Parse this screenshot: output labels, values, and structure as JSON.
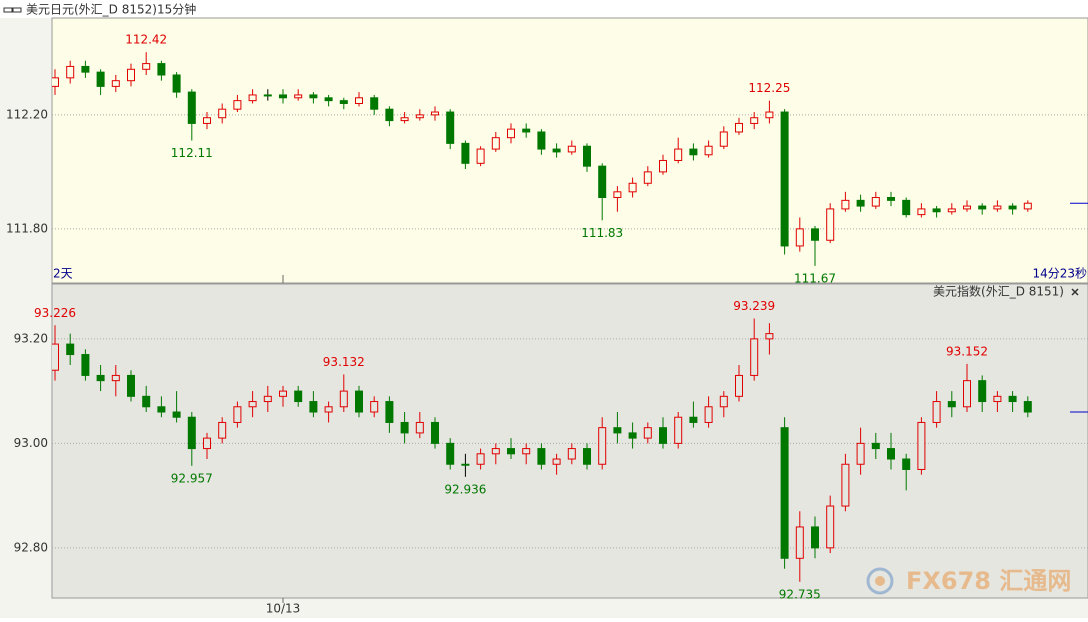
{
  "chart_data": [
    {
      "type": "candlestick",
      "title": "美元日元(外汇_D 8152)15分钟",
      "period_label": "2天",
      "countdown": "14分23秒",
      "up_color": "#e00000",
      "down_color": "#007800",
      "background": "#fdfde8",
      "grid": true,
      "ylim": [
        111.61,
        112.54
      ],
      "yticks": [
        {
          "value": 111.8,
          "label": "111.80"
        },
        {
          "value": 112.2,
          "label": "112.20"
        }
      ],
      "open": [
        112.3,
        112.33,
        112.37,
        112.35,
        112.3,
        112.32,
        112.36,
        112.38,
        112.34,
        112.28,
        112.17,
        112.19,
        112.22,
        112.25,
        112.27,
        112.27,
        112.26,
        112.27,
        112.26,
        112.25,
        112.24,
        112.26,
        112.22,
        112.18,
        112.19,
        112.2,
        112.21,
        112.1,
        112.03,
        112.08,
        112.12,
        112.15,
        112.14,
        112.08,
        112.07,
        112.09,
        112.02,
        111.91,
        111.93,
        111.96,
        112.0,
        112.04,
        112.08,
        112.06,
        112.09,
        112.14,
        112.17,
        112.19,
        112.21,
        111.74,
        111.8,
        111.76,
        111.87,
        111.9,
        111.88,
        111.91,
        111.9,
        111.85,
        111.87,
        111.86,
        111.87,
        111.88,
        111.87,
        111.88,
        111.87
      ],
      "high": [
        112.36,
        112.39,
        112.39,
        112.36,
        112.34,
        112.38,
        112.42,
        112.39,
        112.35,
        112.29,
        112.21,
        112.24,
        112.27,
        112.29,
        112.29,
        112.29,
        112.29,
        112.28,
        112.27,
        112.26,
        112.28,
        112.27,
        112.23,
        112.21,
        112.22,
        112.23,
        112.22,
        112.11,
        112.09,
        112.14,
        112.17,
        112.17,
        112.15,
        112.1,
        112.11,
        112.1,
        112.03,
        111.95,
        111.98,
        112.02,
        112.06,
        112.12,
        112.1,
        112.11,
        112.16,
        112.19,
        112.21,
        112.25,
        112.22,
        111.84,
        111.81,
        111.89,
        111.93,
        111.92,
        111.93,
        111.93,
        111.91,
        111.89,
        111.88,
        111.89,
        111.9,
        111.89,
        111.9,
        111.89,
        111.9
      ],
      "low": [
        112.27,
        112.31,
        112.33,
        112.27,
        112.28,
        112.3,
        112.34,
        112.32,
        112.26,
        112.11,
        112.15,
        112.17,
        112.21,
        112.24,
        112.25,
        112.24,
        112.25,
        112.24,
        112.23,
        112.22,
        112.23,
        112.2,
        112.16,
        112.17,
        112.18,
        112.18,
        112.08,
        112.01,
        112.02,
        112.07,
        112.1,
        112.12,
        112.06,
        112.05,
        112.06,
        112.0,
        111.83,
        111.86,
        111.91,
        111.95,
        111.99,
        112.03,
        112.04,
        112.05,
        112.08,
        112.13,
        112.15,
        112.17,
        111.71,
        111.72,
        111.67,
        111.75,
        111.86,
        111.86,
        111.87,
        111.88,
        111.84,
        111.84,
        111.84,
        111.85,
        111.86,
        111.85,
        111.86,
        111.85,
        111.86
      ],
      "close": [
        112.33,
        112.37,
        112.35,
        112.3,
        112.32,
        112.36,
        112.38,
        112.34,
        112.28,
        112.17,
        112.19,
        112.22,
        112.25,
        112.27,
        112.27,
        112.26,
        112.27,
        112.26,
        112.25,
        112.24,
        112.26,
        112.22,
        112.18,
        112.19,
        112.2,
        112.21,
        112.1,
        112.03,
        112.08,
        112.12,
        112.15,
        112.14,
        112.08,
        112.07,
        112.09,
        112.02,
        111.91,
        111.93,
        111.96,
        112.0,
        112.04,
        112.08,
        112.06,
        112.09,
        112.14,
        112.17,
        112.19,
        112.21,
        111.74,
        111.8,
        111.76,
        111.87,
        111.9,
        111.88,
        111.91,
        111.9,
        111.85,
        111.87,
        111.86,
        111.87,
        111.88,
        111.87,
        111.88,
        111.87,
        111.89
      ],
      "annotations": {
        "highs": [
          112.42,
          112.25
        ],
        "lows": [
          112.11,
          111.83,
          111.67
        ]
      }
    },
    {
      "type": "candlestick",
      "title": "美元指数(外汇_D 8151)",
      "up_color": "#e00000",
      "down_color": "#007800",
      "background": "#e6e6e0",
      "grid": true,
      "ylim": [
        92.704,
        93.305
      ],
      "yticks": [
        {
          "value": 92.8,
          "label": "92.80"
        },
        {
          "value": 93,
          "label": "93.00"
        },
        {
          "value": 93.2,
          "label": "93.20"
        }
      ],
      "categories": [
        null,
        null,
        null,
        null,
        null,
        null,
        null,
        null,
        null,
        null,
        null,
        null,
        null,
        null,
        null,
        "10/13",
        null,
        null,
        null,
        null,
        null,
        null,
        null,
        null,
        null,
        null,
        null,
        null,
        null,
        null,
        null,
        null,
        null,
        null,
        null,
        null,
        null,
        null,
        null,
        null,
        null,
        null,
        null,
        null,
        null,
        null,
        null,
        null,
        null,
        null,
        null,
        null,
        null,
        null,
        null,
        null,
        null,
        null,
        null,
        null,
        null,
        null,
        null,
        null,
        null
      ],
      "open": [
        93.14,
        93.19,
        93.17,
        93.13,
        93.12,
        93.13,
        93.09,
        93.07,
        93.06,
        93.05,
        92.99,
        93.01,
        93.04,
        93.07,
        93.08,
        93.09,
        93.1,
        93.08,
        93.06,
        93.07,
        93.1,
        93.06,
        93.08,
        93.04,
        93.02,
        93.04,
        93.0,
        92.96,
        92.96,
        92.98,
        92.99,
        92.98,
        92.99,
        92.96,
        92.97,
        92.99,
        92.96,
        93.03,
        93.02,
        93.01,
        93.03,
        93.0,
        93.05,
        93.04,
        93.07,
        93.09,
        93.13,
        93.2,
        93.03,
        92.78,
        92.84,
        92.8,
        92.88,
        92.96,
        93.0,
        92.99,
        92.97,
        92.95,
        93.04,
        93.08,
        93.07,
        93.12,
        93.08,
        93.09,
        93.08
      ],
      "high": [
        93.226,
        93.21,
        93.18,
        93.15,
        93.15,
        93.14,
        93.11,
        93.09,
        93.1,
        93.06,
        93.02,
        93.05,
        93.08,
        93.1,
        93.11,
        93.11,
        93.11,
        93.1,
        93.08,
        93.132,
        93.11,
        93.09,
        93.09,
        93.06,
        93.06,
        93.05,
        93.01,
        92.98,
        92.99,
        93.0,
        93.01,
        93.0,
        93.0,
        92.98,
        93.0,
        93.0,
        93.05,
        93.06,
        93.04,
        93.04,
        93.05,
        93.06,
        93.08,
        93.09,
        93.1,
        93.15,
        93.239,
        93.23,
        93.05,
        92.87,
        92.86,
        92.9,
        92.98,
        93.03,
        93.02,
        93.02,
        92.98,
        93.05,
        93.1,
        93.1,
        93.152,
        93.13,
        93.1,
        93.1,
        93.09
      ],
      "low": [
        93.12,
        93.15,
        93.12,
        93.1,
        93.09,
        93.08,
        93.06,
        93.05,
        93.04,
        92.957,
        92.97,
        93.0,
        93.03,
        93.05,
        93.06,
        93.07,
        93.07,
        93.05,
        93.04,
        93.06,
        93.05,
        93.05,
        93.02,
        93.0,
        93.01,
        92.99,
        92.95,
        92.936,
        92.95,
        92.96,
        92.97,
        92.96,
        92.95,
        92.94,
        92.96,
        92.95,
        92.95,
        93.0,
        92.99,
        93.0,
        92.99,
        92.99,
        93.03,
        93.03,
        93.05,
        93.08,
        93.12,
        93.17,
        92.76,
        92.735,
        92.78,
        92.79,
        92.87,
        92.94,
        92.97,
        92.95,
        92.91,
        92.94,
        93.03,
        93.05,
        93.06,
        93.06,
        93.06,
        93.06,
        93.05
      ],
      "close": [
        93.19,
        93.17,
        93.13,
        93.12,
        93.13,
        93.09,
        93.07,
        93.06,
        93.05,
        92.99,
        93.01,
        93.04,
        93.07,
        93.08,
        93.09,
        93.1,
        93.08,
        93.06,
        93.07,
        93.1,
        93.06,
        93.08,
        93.04,
        93.02,
        93.04,
        93.0,
        92.96,
        92.96,
        92.98,
        92.99,
        92.98,
        92.99,
        92.96,
        92.97,
        92.99,
        92.96,
        93.03,
        93.02,
        93.01,
        93.03,
        93.0,
        93.05,
        93.04,
        93.07,
        93.09,
        93.13,
        93.2,
        93.21,
        92.78,
        92.84,
        92.8,
        92.88,
        92.96,
        93.0,
        92.99,
        92.97,
        92.95,
        93.04,
        93.08,
        93.07,
        93.12,
        93.08,
        93.09,
        93.08,
        93.06
      ],
      "annotations": {
        "highs": [
          93.226,
          93.132,
          93.239,
          93.152
        ],
        "lows": [
          92.957,
          92.936,
          92.735
        ]
      }
    }
  ],
  "watermark": "FX678 汇通网"
}
